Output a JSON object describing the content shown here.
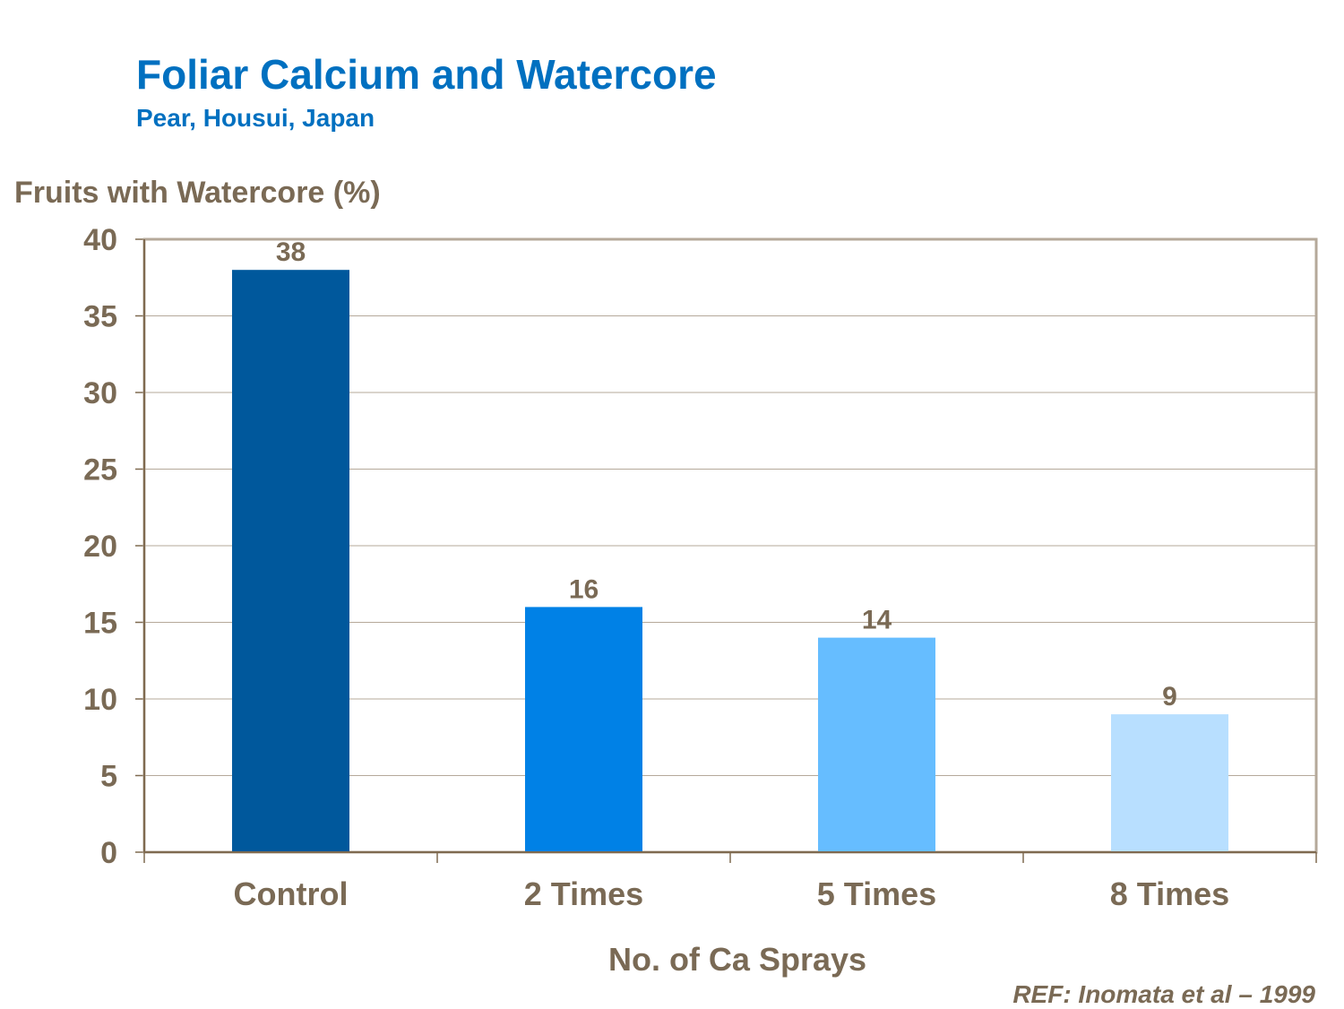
{
  "chart_data": {
    "type": "bar",
    "title": "Foliar Calcium and Watercore",
    "subtitle": "Pear, Housui, Japan",
    "ylabel": "Fruits with Watercore (%)",
    "xlabel": "No. of Ca Sprays",
    "categories": [
      "Control",
      "2 Times",
      "5 Times",
      "8 Times"
    ],
    "values": [
      38,
      16,
      14,
      9
    ],
    "data_labels": [
      "38",
      "16",
      "14",
      "9"
    ],
    "ylim": [
      0,
      40
    ],
    "yticks": [
      0,
      5,
      10,
      15,
      20,
      25,
      30,
      35,
      40
    ],
    "grid": true,
    "bar_colors": [
      "#00589C",
      "#0081E6",
      "#66BDFF",
      "#B8DFFF"
    ],
    "note": "REF: Inomata et al – 1999"
  }
}
